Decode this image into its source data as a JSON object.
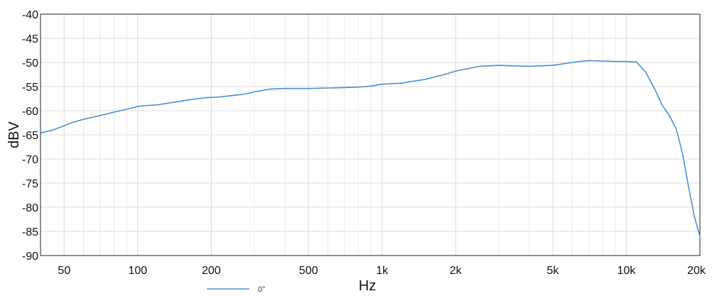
{
  "chart_data": {
    "type": "line",
    "title": "",
    "xlabel": "Hz",
    "ylabel": "dBV",
    "x_scale": "log",
    "xlim": [
      40,
      20000
    ],
    "ylim": [
      -90,
      -40
    ],
    "x_ticks": [
      50,
      100,
      200,
      500,
      1000,
      2000,
      5000,
      10000,
      20000
    ],
    "x_tick_labels": [
      "50",
      "100",
      "200",
      "500",
      "1k",
      "2k",
      "5k",
      "10k",
      "20k"
    ],
    "y_ticks": [
      -40,
      -45,
      -50,
      -55,
      -60,
      -65,
      -70,
      -75,
      -80,
      -85,
      -90
    ],
    "y_tick_labels": [
      "-40",
      "-45",
      "-50",
      "-55",
      "-60",
      "-65",
      "-70",
      "-75",
      "-80",
      "-85",
      "-90"
    ],
    "grid": true,
    "legend_position": "bottom-left",
    "series": [
      {
        "name": "0°",
        "color": "#4a90d0",
        "x": [
          40,
          45,
          50,
          55,
          60,
          70,
          80,
          90,
          100,
          110,
          120,
          150,
          170,
          190,
          210,
          230,
          270,
          300,
          350,
          400,
          500,
          600,
          700,
          800,
          900,
          1000,
          1200,
          1500,
          1800,
          2000,
          2500,
          3000,
          3500,
          4000,
          5000,
          6000,
          7000,
          8000,
          9000,
          10000,
          11000,
          12000,
          13000,
          14000,
          15000,
          16000,
          17000,
          18000,
          19000,
          20000
        ],
        "y": [
          -64.6,
          -64.0,
          -63.1,
          -62.3,
          -61.8,
          -61.0,
          -60.3,
          -59.7,
          -59.1,
          -58.9,
          -58.8,
          -58.0,
          -57.6,
          -57.3,
          -57.2,
          -57.0,
          -56.6,
          -56.1,
          -55.5,
          -55.4,
          -55.4,
          -55.3,
          -55.2,
          -55.1,
          -54.9,
          -54.5,
          -54.3,
          -53.5,
          -52.5,
          -51.8,
          -50.8,
          -50.6,
          -50.7,
          -50.8,
          -50.6,
          -50.0,
          -49.6,
          -49.7,
          -49.8,
          -49.8,
          -49.9,
          -52.0,
          -55.3,
          -58.8,
          -61.0,
          -63.8,
          -69.0,
          -76.0,
          -82.0,
          -86.0
        ]
      }
    ]
  }
}
